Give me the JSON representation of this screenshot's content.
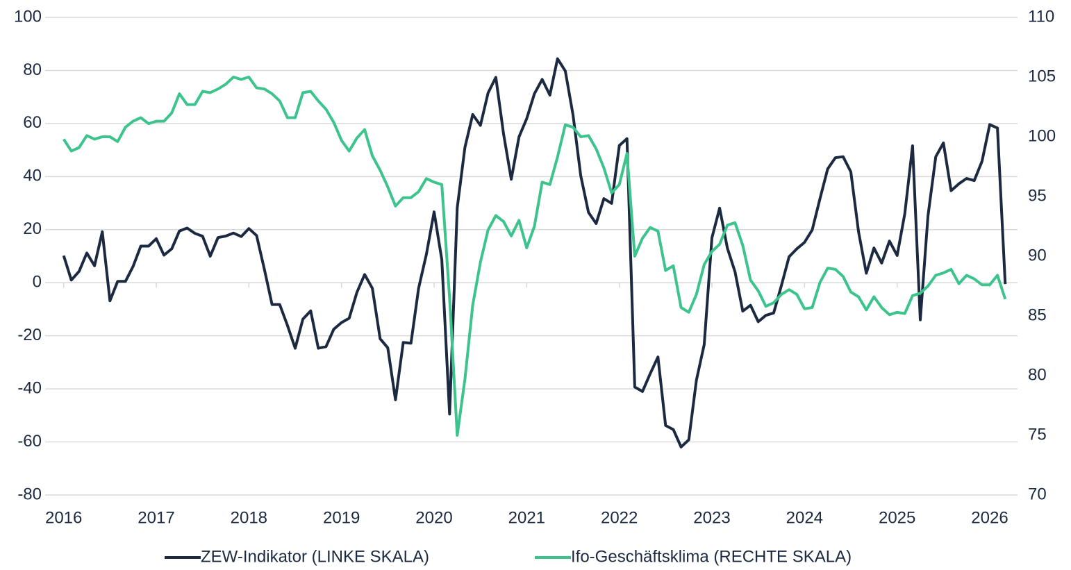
{
  "chart_data": {
    "type": "line",
    "x": [
      2016.0,
      2016.083,
      2016.167,
      2016.25,
      2016.333,
      2016.417,
      2016.5,
      2016.583,
      2016.667,
      2016.75,
      2016.833,
      2016.917,
      2017.0,
      2017.083,
      2017.167,
      2017.25,
      2017.333,
      2017.417,
      2017.5,
      2017.583,
      2017.667,
      2017.75,
      2017.833,
      2017.917,
      2018.0,
      2018.083,
      2018.167,
      2018.25,
      2018.333,
      2018.417,
      2018.5,
      2018.583,
      2018.667,
      2018.75,
      2018.833,
      2018.917,
      2019.0,
      2019.083,
      2019.167,
      2019.25,
      2019.333,
      2019.417,
      2019.5,
      2019.583,
      2019.667,
      2019.75,
      2019.833,
      2019.917,
      2020.0,
      2020.083,
      2020.167,
      2020.25,
      2020.333,
      2020.417,
      2020.5,
      2020.583,
      2020.667,
      2020.75,
      2020.833,
      2020.917,
      2021.0,
      2021.083,
      2021.167,
      2021.25,
      2021.333,
      2021.417,
      2021.5,
      2021.583,
      2021.667,
      2021.75,
      2021.833,
      2021.917,
      2022.0,
      2022.083,
      2022.167,
      2022.25,
      2022.333,
      2022.417,
      2022.5,
      2022.583,
      2022.667,
      2022.75,
      2022.833,
      2022.917,
      2023.0,
      2023.083,
      2023.167,
      2023.25,
      2023.333,
      2023.417,
      2023.5,
      2023.583,
      2023.667,
      2023.75,
      2023.833,
      2023.917,
      2024.0,
      2024.083,
      2024.167,
      2024.25,
      2024.333,
      2024.417,
      2024.5,
      2024.583,
      2024.667,
      2024.75,
      2024.833,
      2024.917,
      2025.0,
      2025.083,
      2025.167,
      2025.25,
      2025.333,
      2025.417,
      2025.5,
      2025.583,
      2025.667,
      2025.75,
      2025.833,
      2025.917,
      2026.0,
      2026.083,
      2026.167
    ],
    "series": [
      {
        "name": "ZEW-Indikator (LINKE SKALA)",
        "color": "#1b2a41",
        "axis": "y",
        "values": [
          10.2,
          1.0,
          4.3,
          11.2,
          6.4,
          19.2,
          -6.8,
          0.5,
          0.5,
          6.2,
          13.8,
          13.8,
          16.6,
          10.4,
          12.8,
          19.5,
          20.6,
          18.6,
          17.5,
          10.0,
          17.0,
          17.6,
          18.7,
          17.4,
          20.4,
          17.8,
          5.1,
          -8.2,
          -8.2,
          -16.1,
          -24.7,
          -13.7,
          -10.6,
          -24.7,
          -24.1,
          -17.5,
          -15.0,
          -13.4,
          -3.6,
          3.1,
          -2.1,
          -21.1,
          -24.5,
          -44.1,
          -22.5,
          -22.8,
          -2.1,
          10.7,
          26.7,
          8.7,
          -49.5,
          28.2,
          51.0,
          63.4,
          59.3,
          71.5,
          77.4,
          56.1,
          39.0,
          55.0,
          61.8,
          71.2,
          76.6,
          70.7,
          84.4,
          79.8,
          63.3,
          40.4,
          26.5,
          22.3,
          31.7,
          29.9,
          51.7,
          54.3,
          -39.3,
          -41.0,
          -34.3,
          -28.0,
          -53.8,
          -55.3,
          -61.9,
          -59.2,
          -36.7,
          -23.3,
          16.9,
          28.1,
          13.0,
          4.1,
          -10.7,
          -8.5,
          -14.7,
          -12.3,
          -11.4,
          -1.1,
          9.8,
          12.8,
          15.2,
          19.9,
          31.7,
          42.9,
          47.1,
          47.5,
          41.8,
          19.2,
          3.6,
          13.1,
          7.4,
          15.7,
          10.3,
          26.0,
          51.6,
          -14.0,
          25.2,
          47.5,
          52.7,
          34.7,
          37.3,
          39.3,
          38.5,
          45.8,
          59.6,
          58.3,
          -0.5
        ]
      },
      {
        "name": "Ifo-Geschäftsklima (RECHTE SKALA)",
        "color": "#3cc48c",
        "axis": "y2",
        "values": [
          99.8,
          98.8,
          99.1,
          100.1,
          99.8,
          100.0,
          100.0,
          99.6,
          100.8,
          101.3,
          101.6,
          101.1,
          101.3,
          101.3,
          102.0,
          103.6,
          102.7,
          102.7,
          103.8,
          103.7,
          104.0,
          104.4,
          105.0,
          104.8,
          105.0,
          104.1,
          104.0,
          103.6,
          103.0,
          101.6,
          101.6,
          103.7,
          103.8,
          103.0,
          102.3,
          101.2,
          99.7,
          98.8,
          99.9,
          100.6,
          98.4,
          97.2,
          95.8,
          94.2,
          94.9,
          94.9,
          95.4,
          96.5,
          96.2,
          96.0,
          86.5,
          75.0,
          79.7,
          85.9,
          89.5,
          92.2,
          93.4,
          92.9,
          91.7,
          93.0,
          90.7,
          92.5,
          96.2,
          96.0,
          98.3,
          101.0,
          100.8,
          100.0,
          100.1,
          99.0,
          97.4,
          95.3,
          96.0,
          98.6,
          90.0,
          91.5,
          92.4,
          92.1,
          88.8,
          89.2,
          85.7,
          85.3,
          86.8,
          89.3,
          90.4,
          91.0,
          92.6,
          92.8,
          90.9,
          88.0,
          87.1,
          85.8,
          86.1,
          86.8,
          87.2,
          86.8,
          85.6,
          85.7,
          87.8,
          89.0,
          88.9,
          88.3,
          87.0,
          86.6,
          85.5,
          86.6,
          85.7,
          85.1,
          85.3,
          85.2,
          86.7,
          86.9,
          87.5,
          88.4,
          88.6,
          88.9,
          87.7,
          88.4,
          88.1,
          87.6,
          87.6,
          88.4,
          86.4
        ]
      }
    ],
    "xlim": [
      2015.8,
      2026.3
    ],
    "xticks": [
      2016,
      2017,
      2018,
      2019,
      2020,
      2021,
      2022,
      2023,
      2024,
      2025,
      2026
    ],
    "ylim": [
      -80,
      100
    ],
    "yticks": [
      -80,
      -60,
      -40,
      -20,
      0,
      20,
      40,
      60,
      80,
      100
    ],
    "y2lim": [
      70,
      110
    ],
    "y2ticks": [
      70,
      75,
      80,
      85,
      90,
      95,
      100,
      105,
      110
    ],
    "grid": true
  }
}
